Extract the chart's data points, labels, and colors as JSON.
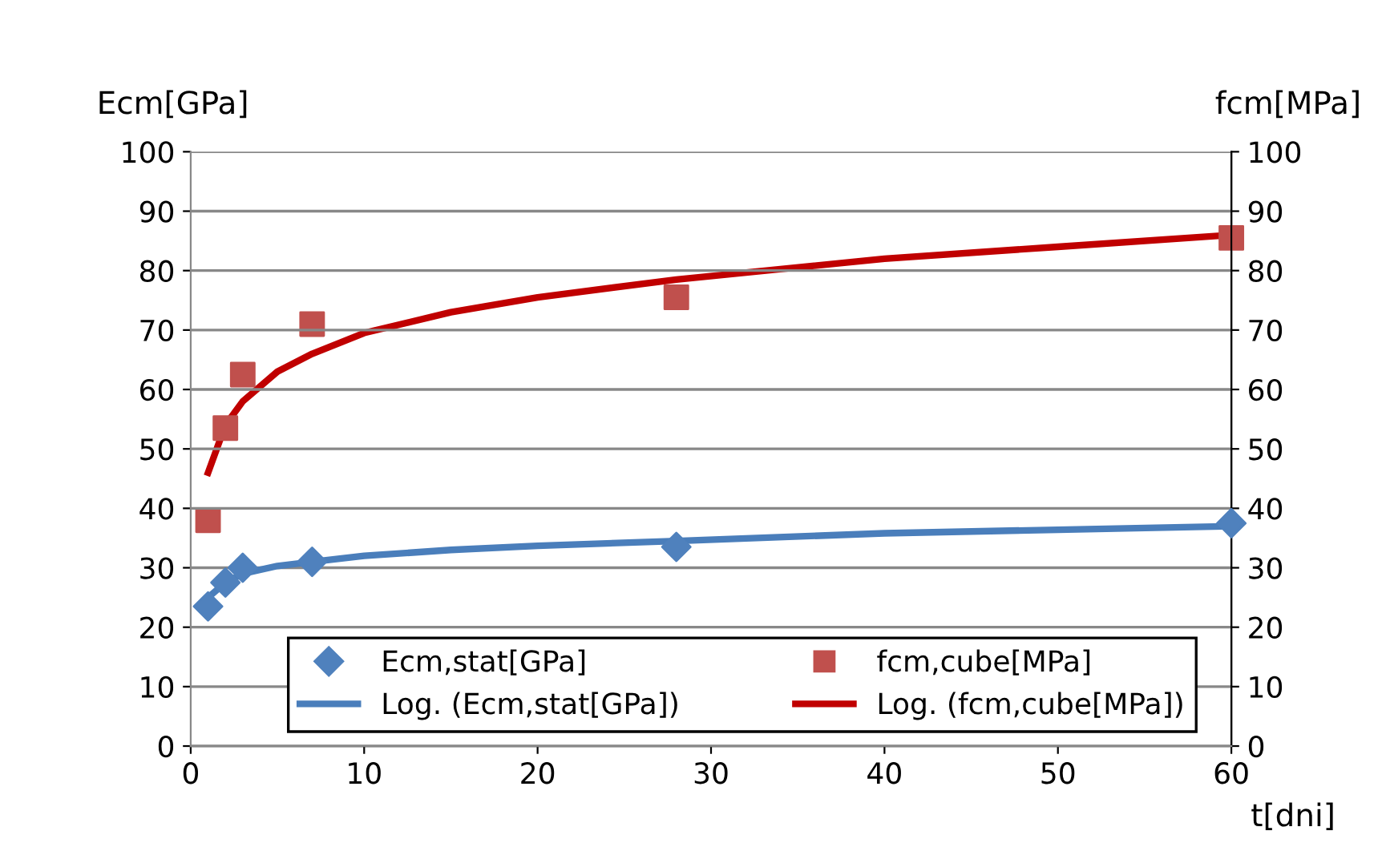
{
  "chart_data": {
    "type": "scatter",
    "ylabel": "Ecm[GPa]",
    "y2label": "fcm[MPa]",
    "xlabel": "t[dni]",
    "xlim": [
      0,
      60
    ],
    "xticks": [
      0,
      10,
      20,
      30,
      40,
      50,
      60
    ],
    "ylim": [
      0,
      100
    ],
    "yticks": [
      0,
      10,
      20,
      30,
      40,
      50,
      60,
      70,
      80,
      90,
      100
    ],
    "y2lim": [
      0,
      100
    ],
    "y2ticks": [
      0,
      10,
      20,
      30,
      40,
      50,
      60,
      70,
      80,
      90,
      100
    ],
    "grid": "y",
    "legend": "bottom",
    "series": [
      {
        "name": "Ecm,stat[GPa]",
        "marker": "diamond",
        "color": "#4f81bd",
        "x": [
          1,
          2,
          3,
          7,
          28,
          60
        ],
        "values": [
          23.5,
          27.5,
          30,
          31,
          33.5,
          37.5
        ]
      },
      {
        "name": "fcm,cube[MPa]",
        "marker": "square",
        "axis": "y2",
        "color": "#c0504d",
        "x": [
          1,
          2,
          3,
          7,
          28,
          60
        ],
        "values": [
          38,
          53.5,
          62.5,
          71,
          75.5,
          85.5
        ]
      },
      {
        "name": "Log. (Ecm,stat[GPa])",
        "type": "line",
        "color": "#4a7ebb",
        "x": [
          1,
          2,
          3,
          5,
          7,
          10,
          15,
          20,
          28,
          40,
          50,
          60
        ],
        "values": [
          25,
          27.5,
          29,
          30.3,
          31,
          32,
          33,
          33.7,
          34.5,
          35.8,
          36.4,
          37
        ]
      },
      {
        "name": "Log. (fcm,cube[MPa])",
        "type": "line",
        "axis": "y2",
        "color": "#c00000",
        "x": [
          1,
          2,
          3,
          5,
          7,
          10,
          15,
          20,
          28,
          40,
          50,
          60
        ],
        "values": [
          46,
          54,
          58,
          63,
          66,
          69.5,
          73,
          75.5,
          78.5,
          82,
          84,
          86
        ]
      }
    ]
  }
}
